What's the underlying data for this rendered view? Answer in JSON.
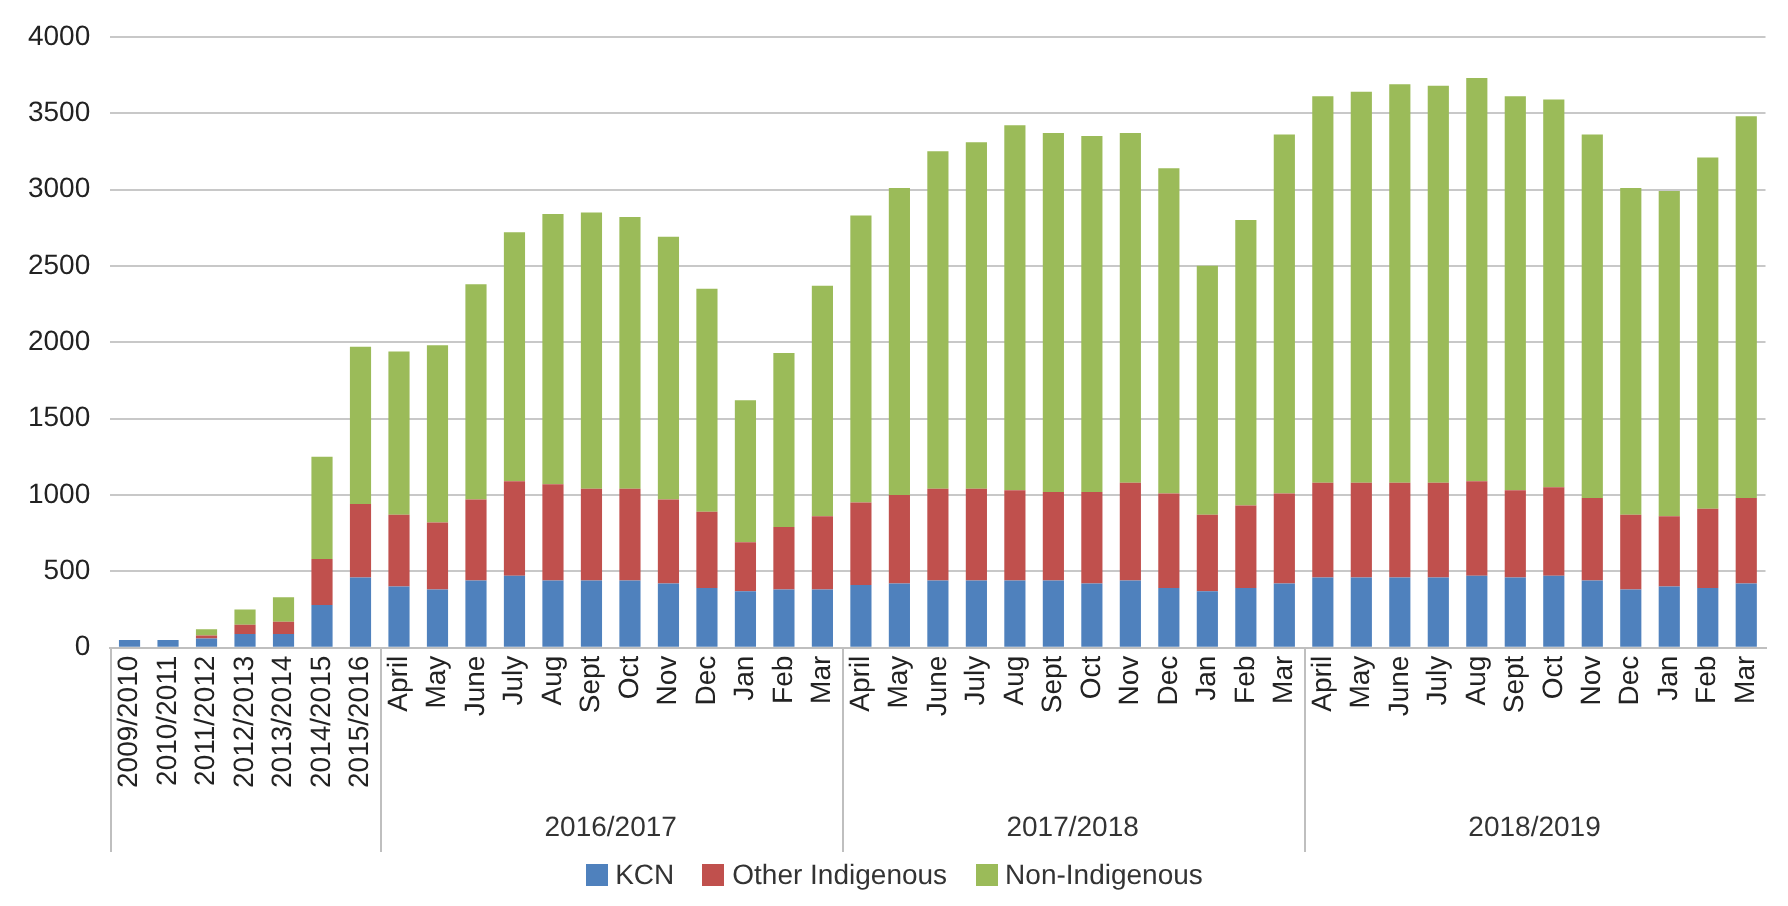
{
  "chart_data": {
    "type": "bar",
    "stacked": true,
    "categories": [
      "2009/2010",
      "2010/2011",
      "2011/2012",
      "2012/2013",
      "2013/2014",
      "2014/2015",
      "2015/2016",
      "April",
      "May",
      "June",
      "July",
      "Aug",
      "Sept",
      "Oct",
      "Nov",
      "Dec",
      "Jan",
      "Feb",
      "Mar",
      "April",
      "May",
      "June",
      "July",
      "Aug",
      "Sept",
      "Oct",
      "Nov",
      "Dec",
      "Jan",
      "Feb",
      "Mar",
      "April",
      "May",
      "June",
      "July",
      "Aug",
      "Sept",
      "Oct",
      "Nov",
      "Dec",
      "Jan",
      "Feb",
      "Mar"
    ],
    "series": [
      {
        "name": "KCN",
        "color": "#4f81bd",
        "values": [
          50,
          50,
          60,
          90,
          90,
          280,
          460,
          400,
          380,
          440,
          470,
          440,
          440,
          440,
          420,
          390,
          370,
          380,
          380,
          410,
          420,
          440,
          440,
          440,
          440,
          420,
          440,
          390,
          370,
          390,
          420,
          460,
          460,
          460,
          460,
          470,
          460,
          470,
          440,
          380,
          400,
          390,
          420
        ]
      },
      {
        "name": "Other Indigenous",
        "color": "#c0504d",
        "values": [
          0,
          0,
          20,
          60,
          80,
          300,
          480,
          470,
          440,
          530,
          620,
          630,
          600,
          600,
          550,
          500,
          320,
          410,
          480,
          540,
          580,
          600,
          600,
          590,
          580,
          600,
          640,
          620,
          500,
          540,
          590,
          620,
          620,
          620,
          620,
          620,
          570,
          580,
          540,
          490,
          460,
          520,
          560
        ]
      },
      {
        "name": "Non-Indigenous",
        "color": "#9bbb59",
        "values": [
          0,
          0,
          40,
          100,
          160,
          670,
          1030,
          1070,
          1160,
          1410,
          1630,
          1770,
          1810,
          1780,
          1720,
          1460,
          930,
          1140,
          1510,
          1880,
          2010,
          2210,
          2270,
          2390,
          2350,
          2330,
          2290,
          2130,
          1630,
          1870,
          2350,
          2530,
          2560,
          2610,
          2600,
          2640,
          2580,
          2540,
          2380,
          2140,
          2130,
          2300,
          2500
        ]
      }
    ],
    "ylim": [
      0,
      4000
    ],
    "yticks": [
      0,
      500,
      1000,
      1500,
      2000,
      2500,
      3000,
      3500,
      4000
    ],
    "grid": "y",
    "legend": "bottom",
    "annotations": [
      "2016/2017",
      "2017/2018",
      "2018/2019"
    ]
  }
}
